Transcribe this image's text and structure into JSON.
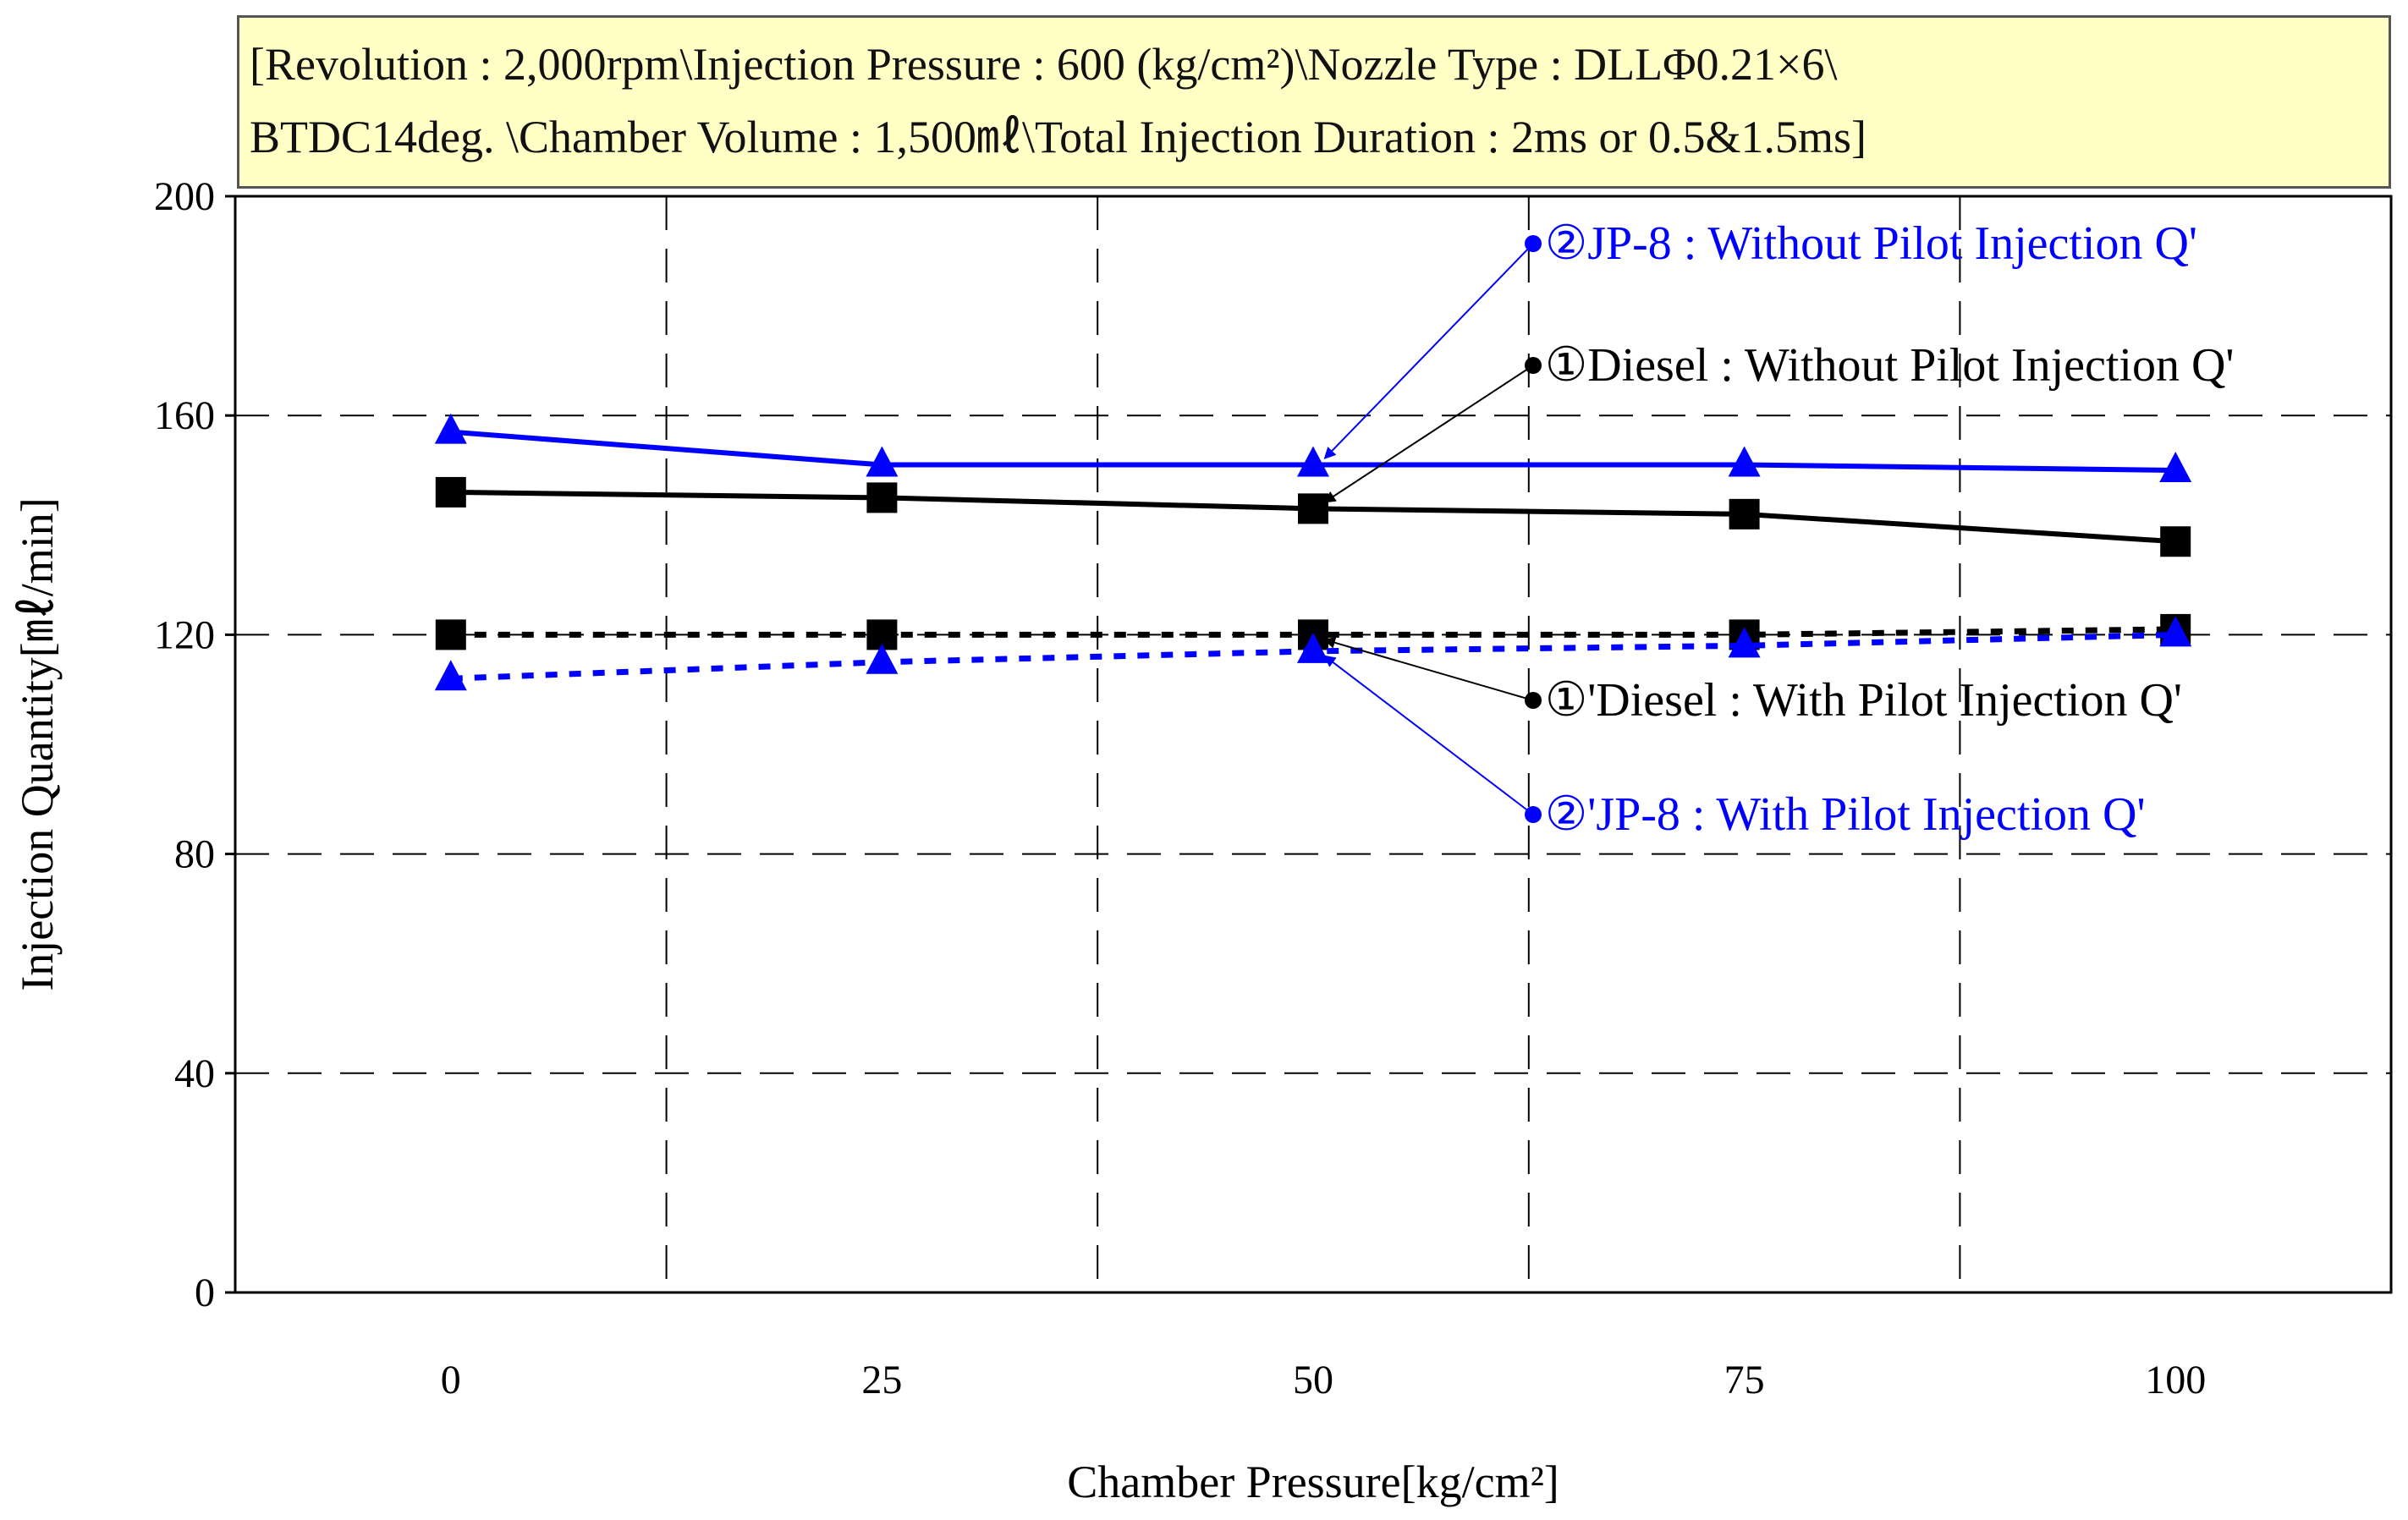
{
  "header": {
    "line1": "[Revolution : 2,000rpm\\Injection Pressure : 600 (kg/cm²)\\Nozzle Type : DLLΦ0.21×6\\",
    "line2": "BTDC14deg. \\Chamber Volume : 1,500㎖\\Total Injection Duration  : 2ms or 0.5&1.5ms]"
  },
  "colors": {
    "black_series": "#000000",
    "blue_series": "#0000ff",
    "grid": "#000000",
    "info_bg": "#ffffc6"
  },
  "chart_data": {
    "type": "line",
    "title": "",
    "xlabel": "Chamber Pressure[kg/cm²]",
    "ylabel": "Injection Quantity[㎖/min]",
    "x": [
      0,
      25,
      50,
      75,
      100
    ],
    "xlim": [
      -12.5,
      112.5
    ],
    "ylim": [
      0,
      200
    ],
    "x_ticks": [
      0,
      25,
      50,
      75,
      100
    ],
    "y_ticks": [
      0,
      40,
      80,
      120,
      160,
      200
    ],
    "grid": true,
    "series": [
      {
        "name": "②JP-8 : Without Pilot Injection Q'",
        "values": [
          157,
          151,
          151,
          151,
          150
        ],
        "color": "#0000ff",
        "marker": "triangle",
        "line": "solid"
      },
      {
        "name": "①Diesel : Without Pilot Injection Q'",
        "values": [
          146,
          145,
          143,
          142,
          137
        ],
        "color": "#000000",
        "marker": "square",
        "line": "solid"
      },
      {
        "name": "①'Diesel : With Pilot Injection Q'",
        "values": [
          120,
          120,
          120,
          120,
          121
        ],
        "color": "#000000",
        "marker": "square",
        "line": "dotted"
      },
      {
        "name": "②'JP-8 : With Pilot Injection Q'",
        "values": [
          112,
          115,
          117,
          118,
          120
        ],
        "color": "#0000ff",
        "marker": "triangle",
        "line": "dotted"
      }
    ],
    "annotations": [
      {
        "text": "②JP-8 : Without Pilot Injection Q'",
        "color": "#0000ff",
        "target": {
          "x": 50,
          "y": 151
        }
      },
      {
        "text": "①Diesel : Without Pilot Injection Q'",
        "color": "#000000",
        "target": {
          "x": 50,
          "y": 143
        }
      },
      {
        "text": "①'Diesel : With Pilot Injection Q'",
        "color": "#000000",
        "target": {
          "x": 50,
          "y": 120
        }
      },
      {
        "text": "②'JP-8 : With Pilot Injection Q'",
        "color": "#0000ff",
        "target": {
          "x": 50,
          "y": 117
        }
      }
    ]
  }
}
